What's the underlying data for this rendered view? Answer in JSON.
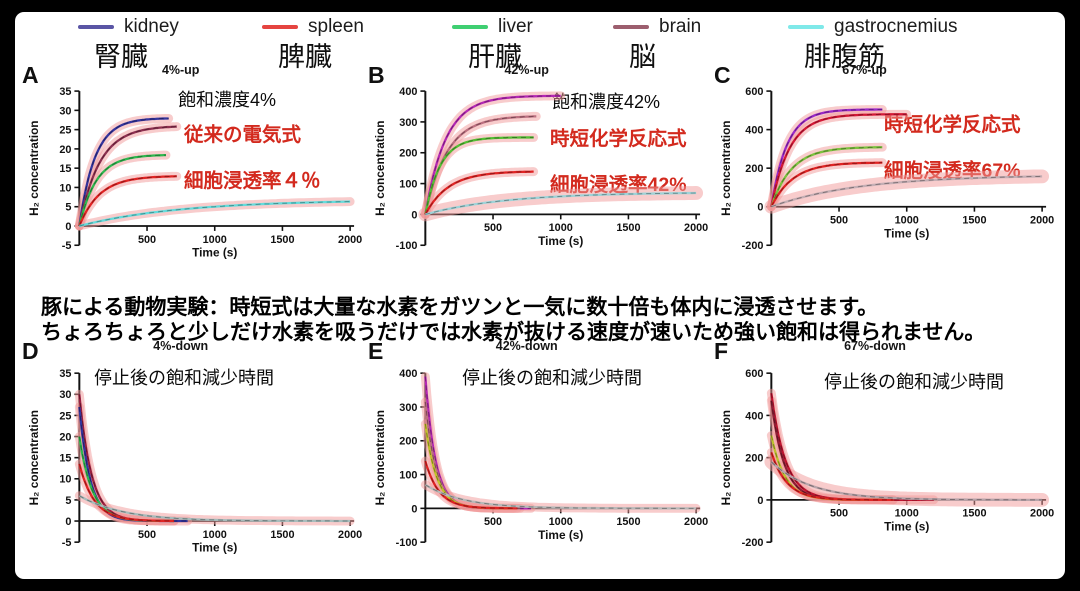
{
  "legend": {
    "items": [
      {
        "en": "kidney",
        "jp": "腎臓",
        "color": "#5a55a5"
      },
      {
        "en": "spleen",
        "jp": "脾臓",
        "color": "#e54440"
      },
      {
        "en": "liver",
        "jp": "肝臓",
        "color": "#3fcf72"
      },
      {
        "en": "brain",
        "jp": "脳",
        "color": "#9c5e6e"
      },
      {
        "en": "gastrocnemius",
        "jp": "腓腹筋",
        "color": "#7fe9e9"
      }
    ]
  },
  "middle_text": {
    "line1": "豚による動物実験：時短式は大量な水素をガツンと一気に数十倍も体内に浸透させます。",
    "line2": "ちょろちょろと少しだけ水素を吸うだけでは水素が抜ける速度が速いため強い飽和は得られません。"
  },
  "annotation_color": "#d32a1e",
  "band_color": "#f29a9a",
  "chart_data": [
    {
      "id": "A",
      "type": "line",
      "title": "4%-up",
      "mode": "rise",
      "black_note": "飽和濃度4%",
      "red_notes": [
        "従来の電気式",
        "細胞浸透率４％"
      ],
      "xlabel": "Time (s)",
      "ylabel": "H₂ concentration",
      "xlim": [
        0,
        2000
      ],
      "xticks": [
        500,
        1000,
        1500,
        2000
      ],
      "ylim": [
        -5,
        35
      ],
      "yticks": [
        35,
        30,
        25,
        20,
        15,
        10,
        5,
        0,
        -5
      ],
      "series": [
        {
          "name": "kidney",
          "color": "#34349e",
          "value": 28,
          "tau": 115,
          "xend": 660
        },
        {
          "name": "brain",
          "color": "#8e3050",
          "value": 26,
          "tau": 150,
          "xend": 720
        },
        {
          "name": "liver",
          "color": "#2eb84f",
          "value": 18.5,
          "tau": 125,
          "xend": 640
        },
        {
          "name": "spleen",
          "color": "#e02424",
          "value": 13,
          "tau": 150,
          "xend": 720
        },
        {
          "name": "gastrocnemius",
          "color": "#66dcdc",
          "value": 6.8,
          "tau": 750,
          "xend": 2000
        }
      ]
    },
    {
      "id": "B",
      "type": "line",
      "title": "42%-up",
      "mode": "rise",
      "black_note": "飽和濃度42%",
      "red_notes": [
        "時短化学反応式",
        "細胞浸透率42%"
      ],
      "xlabel": "Time (s)",
      "ylabel": "H₂ concentration",
      "xlim": [
        0,
        2000
      ],
      "xticks": [
        500,
        1000,
        1500,
        2000
      ],
      "ylim": [
        -100,
        400
      ],
      "yticks": [
        400,
        300,
        200,
        100,
        0,
        -100
      ],
      "series": [
        {
          "name": "kidney",
          "color": "#b428b4",
          "value": 385,
          "tau": 150,
          "xend": 1000
        },
        {
          "name": "brain",
          "color": "#bc7080",
          "value": 320,
          "tau": 160,
          "xend": 820
        },
        {
          "name": "liver",
          "color": "#54be34",
          "value": 250,
          "tau": 110,
          "xend": 800
        },
        {
          "name": "spleen",
          "color": "#e02424",
          "value": 140,
          "tau": 170,
          "xend": 800
        },
        {
          "name": "gastrocnemius",
          "color": "#9fd3d8",
          "value": 72,
          "tau": 600,
          "xend": 2000,
          "band": 14
        }
      ]
    },
    {
      "id": "C",
      "type": "line",
      "title": "67%-up",
      "mode": "rise",
      "black_note": "",
      "red_notes": [
        "時短化学反応式",
        "細胞浸透率67%"
      ],
      "xlabel": "Time (s)",
      "ylabel": "H₂ concentration",
      "xlim": [
        0,
        2000
      ],
      "xticks": [
        500,
        1000,
        1500,
        2000
      ],
      "ylim": [
        -200,
        600
      ],
      "yticks": [
        600,
        400,
        200,
        0,
        -200
      ],
      "series": [
        {
          "name": "kidney",
          "color": "#9a28c8",
          "value": 505,
          "tau": 115,
          "xend": 820
        },
        {
          "name": "brain",
          "color": "#d41836",
          "value": 480,
          "tau": 135,
          "xend": 1000
        },
        {
          "name": "liver",
          "color": "#7cc23e",
          "value": 310,
          "tau": 150,
          "xend": 820
        },
        {
          "name": "spleen",
          "color": "#e02424",
          "value": 230,
          "tau": 160,
          "xend": 820
        },
        {
          "name": "gastrocnemius",
          "color": "#c4aeb4",
          "value": 165,
          "tau": 650,
          "xend": 2000,
          "band": 14
        }
      ]
    },
    {
      "id": "D",
      "type": "line",
      "title": "4%-down",
      "mode": "decay",
      "black_note": "停止後の飽和減少時間",
      "xlabel": "Time (s)",
      "ylabel": "H₂ concentration",
      "xlim": [
        0,
        2000
      ],
      "xticks": [
        500,
        1000,
        1500,
        2000
      ],
      "ylim": [
        -5,
        35
      ],
      "yticks": [
        35,
        30,
        25,
        20,
        15,
        10,
        5,
        0,
        -5
      ],
      "series": [
        {
          "name": "brain",
          "color": "#9a2040",
          "value": 30,
          "tau": 90,
          "xend": 700
        },
        {
          "name": "kidney",
          "color": "#34349e",
          "value": 27,
          "tau": 80,
          "xend": 800
        },
        {
          "name": "liver",
          "color": "#2eb84f",
          "value": 20,
          "tau": 95,
          "xend": 700
        },
        {
          "name": "spleen",
          "color": "#e02424",
          "value": 13.5,
          "tau": 110,
          "xend": 700
        },
        {
          "name": "gastrocnemius",
          "color": "#a8bcbc",
          "value": 6,
          "tau": 320,
          "xend": 2000
        }
      ]
    },
    {
      "id": "E",
      "type": "line",
      "title": "42%-down",
      "mode": "decay",
      "black_note": "停止後の飽和減少時間",
      "xlabel": "Time (s)",
      "ylabel": "H₂ concentration",
      "xlim": [
        0,
        2000
      ],
      "xticks": [
        500,
        1000,
        1500,
        2000
      ],
      "ylim": [
        -100,
        400
      ],
      "yticks": [
        400,
        300,
        200,
        100,
        0,
        -100
      ],
      "series": [
        {
          "name": "kidney",
          "color": "#b428b4",
          "value": 390,
          "tau": 75,
          "xend": 780
        },
        {
          "name": "brain",
          "color": "#bc7080",
          "value": 315,
          "tau": 80,
          "xend": 700
        },
        {
          "name": "liver",
          "color": "#c2c22a",
          "value": 250,
          "tau": 85,
          "xend": 650
        },
        {
          "name": "spleen",
          "color": "#e02424",
          "value": 140,
          "tau": 100,
          "xend": 680
        },
        {
          "name": "gastrocnemius",
          "color": "#b9b9b9",
          "value": 70,
          "tau": 280,
          "xend": 2000
        }
      ]
    },
    {
      "id": "F",
      "type": "line",
      "title": "67%-down",
      "mode": "decay",
      "black_note": "停止後の飽和減少時間",
      "xlabel": "Time (s)",
      "ylabel": "H₂ concentration",
      "xlim": [
        0,
        2000
      ],
      "xticks": [
        500,
        1000,
        1500,
        2000
      ],
      "ylim": [
        -200,
        600
      ],
      "yticks": [
        600,
        400,
        200,
        0,
        -200
      ],
      "series": [
        {
          "name": "kidney",
          "color": "#c01430",
          "value": 505,
          "tau": 105,
          "xend": 1200
        },
        {
          "name": "brain",
          "color": "#8e1f35",
          "value": 470,
          "tau": 95,
          "xend": 900
        },
        {
          "name": "liver",
          "color": "#bdc22e",
          "value": 305,
          "tau": 100,
          "xend": 900
        },
        {
          "name": "spleen",
          "color": "#e02424",
          "value": 225,
          "tau": 115,
          "xend": 900
        },
        {
          "name": "gastrocnemius",
          "color": "#b8a4aa",
          "value": 180,
          "tau": 300,
          "xend": 2000,
          "band": 14
        }
      ]
    }
  ]
}
